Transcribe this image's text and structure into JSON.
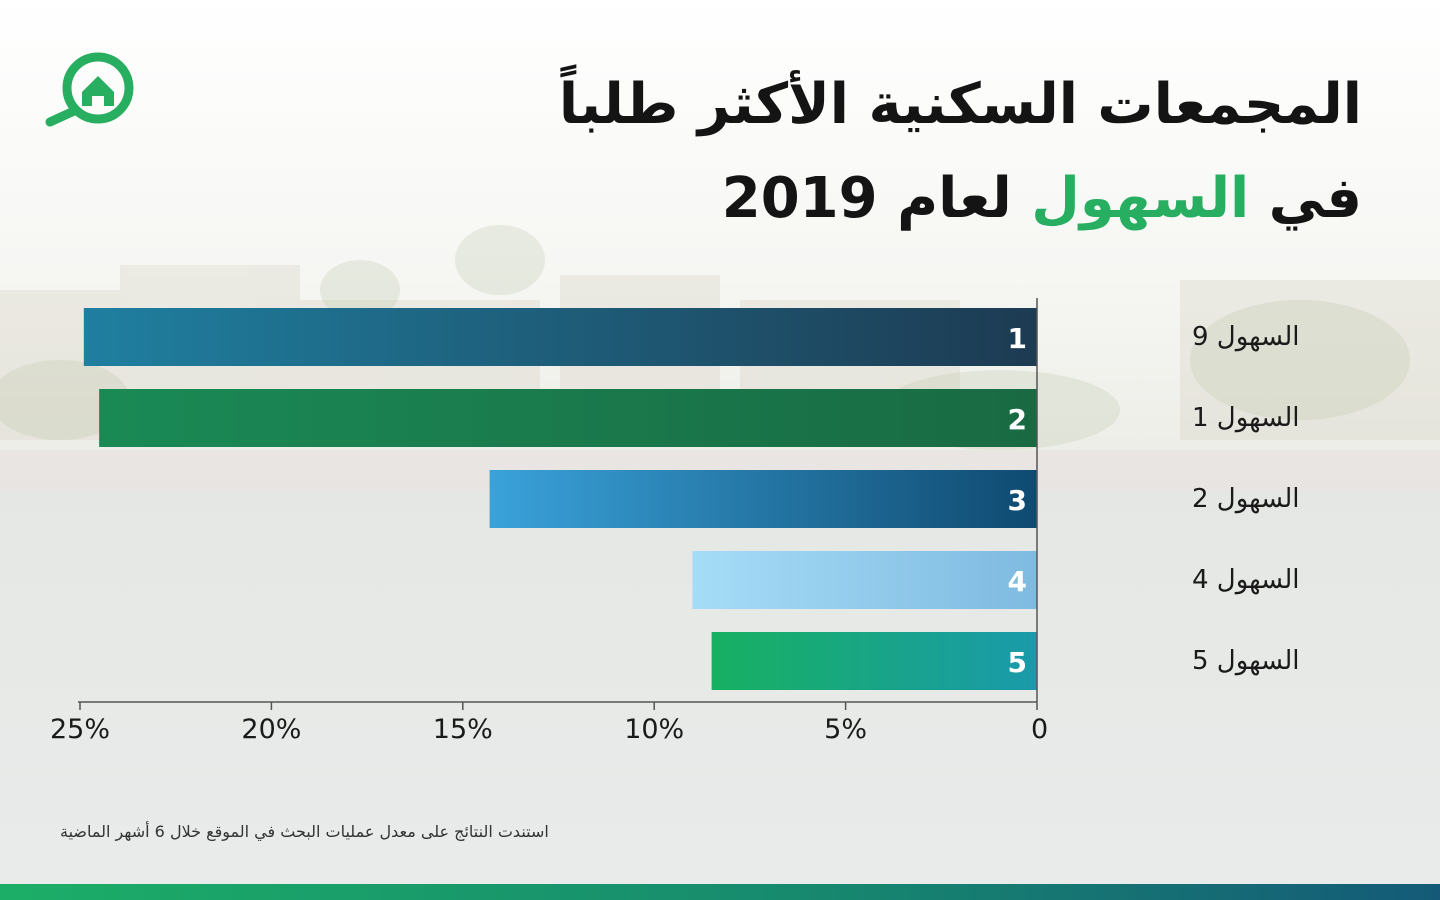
{
  "header": {
    "title_line1": "المجمعات السكنية الأكثر طلباً",
    "title_line2_prefix": "في",
    "title_line2_accent": "السهول",
    "title_line2_suffix": "لعام 2019",
    "accent_color": "#27ae60"
  },
  "logo": {
    "icon": "house-search-icon",
    "color": "#27ae60"
  },
  "chart_data": {
    "type": "bar",
    "orientation": "horizontal",
    "x_reversed": true,
    "categories": [
      "السهول 9",
      "السهول 1",
      "السهول 2",
      "السهول 4",
      "السهول 5"
    ],
    "rank_labels": [
      "1",
      "2",
      "3",
      "4",
      "5"
    ],
    "values": [
      24.9,
      24.5,
      14.3,
      9.0,
      8.5
    ],
    "xlim": [
      0,
      25
    ],
    "xticks": [
      0,
      5,
      10,
      15,
      20,
      25
    ],
    "xtick_labels": [
      "0",
      "5%",
      "10%",
      "15%",
      "20%",
      "25%"
    ],
    "bar_gradients": [
      [
        "#1d3b52",
        "#1f7fa0"
      ],
      [
        "#196a43",
        "#1a8a55"
      ],
      [
        "#0f4a70",
        "#3aa2da"
      ],
      [
        "#7fbae0",
        "#a5dcf7"
      ],
      [
        "#1a9aab",
        "#17b061"
      ]
    ],
    "grid": false
  },
  "footnote": "استندت النتائج على معدل عمليات البحث في الموقع خلال 6 أشهر الماضية"
}
